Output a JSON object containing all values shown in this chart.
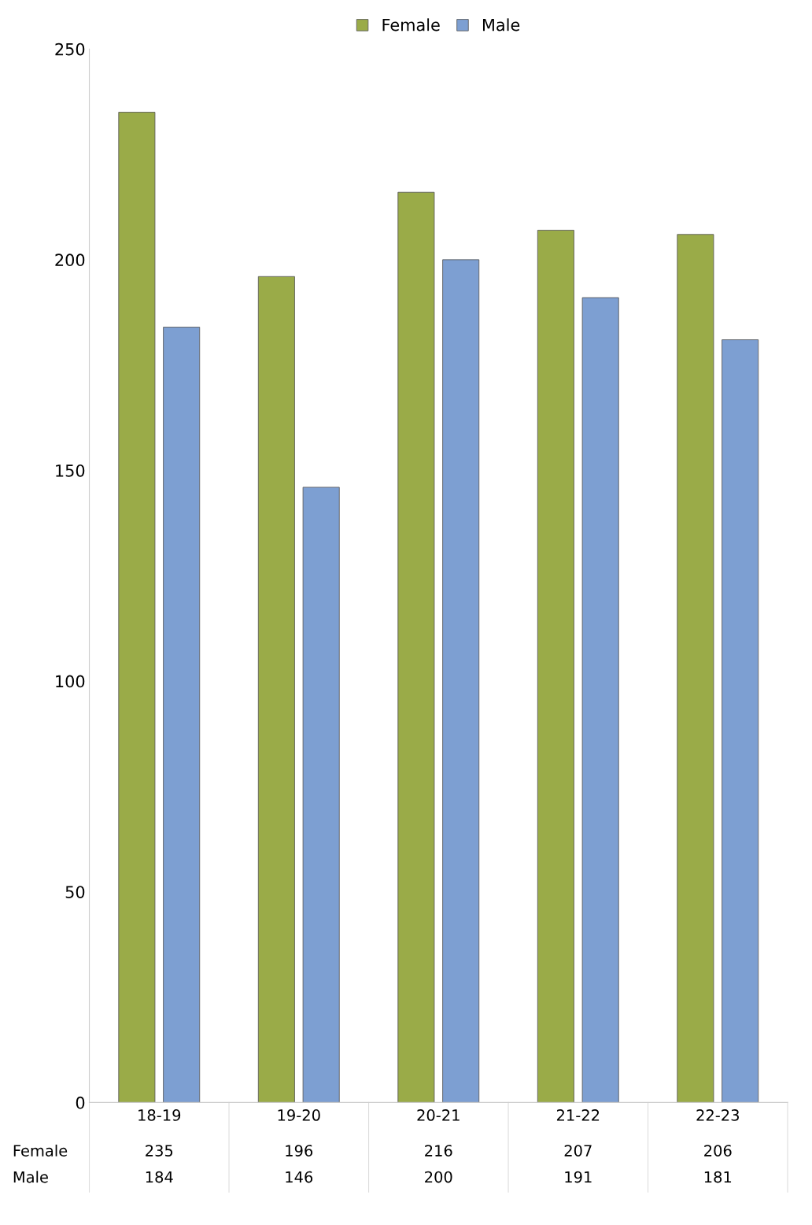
{
  "chart_data": {
    "type": "bar",
    "categories": [
      "18-19",
      "19-20",
      "20-21",
      "21-22",
      "22-23"
    ],
    "series": [
      {
        "name": "Female",
        "color": "#9aab48",
        "values": [
          235,
          196,
          216,
          207,
          206
        ]
      },
      {
        "name": "Male",
        "color": "#7d9fd2",
        "values": [
          184,
          146,
          200,
          191,
          181
        ]
      }
    ],
    "ylim": [
      0,
      250
    ],
    "yticks": [
      0,
      50,
      100,
      150,
      200,
      250
    ],
    "grid": false,
    "legend": "top",
    "data_labels": true
  }
}
